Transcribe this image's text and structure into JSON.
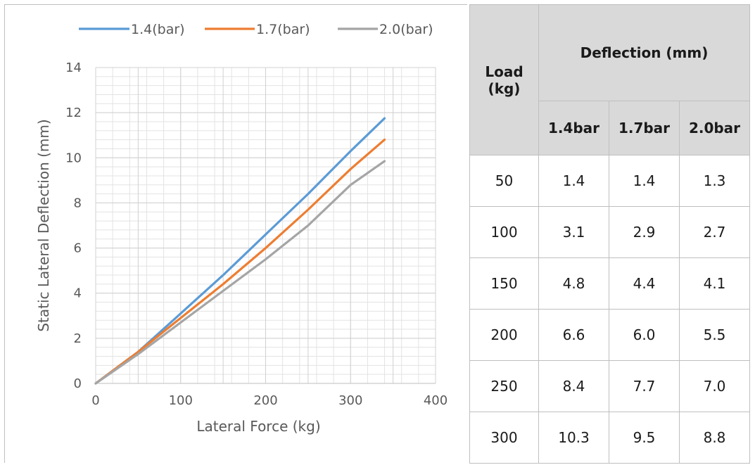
{
  "chart_data": {
    "type": "line",
    "xlabel": "Lateral Force (kg)",
    "ylabel": "Static Lateral Deflection (mm)",
    "xlim": [
      0,
      400
    ],
    "ylim": [
      0,
      14
    ],
    "x_ticks": [
      "0",
      "100",
      "200",
      "300",
      "400"
    ],
    "y_ticks": [
      "0",
      "2",
      "4",
      "6",
      "8",
      "10",
      "12",
      "14"
    ],
    "grid": "on",
    "legend_position": "top",
    "series": [
      {
        "name": "1.4(bar)",
        "color": "#5b9bd5",
        "x": [
          0,
          50,
          100,
          150,
          200,
          250,
          300,
          340
        ],
        "y": [
          0,
          1.4,
          3.1,
          4.8,
          6.6,
          8.4,
          10.3,
          11.75
        ]
      },
      {
        "name": "1.7(bar)",
        "color": "#ed7d31",
        "x": [
          0,
          50,
          100,
          150,
          200,
          250,
          300,
          340
        ],
        "y": [
          0,
          1.4,
          2.9,
          4.4,
          6.0,
          7.7,
          9.5,
          10.8
        ]
      },
      {
        "name": "2.0(bar)",
        "color": "#a5a5a5",
        "x": [
          0,
          50,
          100,
          150,
          200,
          250,
          300,
          340
        ],
        "y": [
          0,
          1.3,
          2.7,
          4.1,
          5.5,
          7.0,
          8.8,
          9.85
        ]
      }
    ]
  },
  "table": {
    "load_header": "Load (kg)",
    "deflection_header": "Deflection (mm)",
    "columns": [
      "1.4bar",
      "1.7bar",
      "2.0bar"
    ],
    "rows": [
      {
        "load": "50",
        "v": [
          "1.4",
          "1.4",
          "1.3"
        ]
      },
      {
        "load": "100",
        "v": [
          "3.1",
          "2.9",
          "2.7"
        ]
      },
      {
        "load": "150",
        "v": [
          "4.8",
          "4.4",
          "4.1"
        ]
      },
      {
        "load": "200",
        "v": [
          "6.6",
          "6.0",
          "5.5"
        ]
      },
      {
        "load": "250",
        "v": [
          "8.4",
          "7.7",
          "7.0"
        ]
      },
      {
        "load": "300",
        "v": [
          "10.3",
          "9.5",
          "8.8"
        ]
      }
    ]
  }
}
